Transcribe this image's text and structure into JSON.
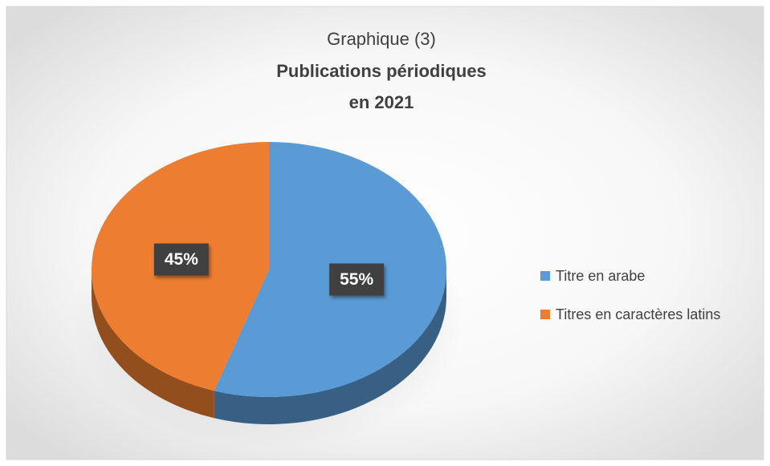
{
  "chart_data": {
    "type": "pie",
    "title": [
      "Graphique (3)",
      "Publications périodiques",
      "en 2021"
    ],
    "categories": [
      "Titre en arabe",
      "Titres en caractères latins"
    ],
    "values": [
      55,
      45
    ],
    "value_labels": [
      "55%",
      "45%"
    ],
    "colors": [
      "#5b9bd5",
      "#ed7d31"
    ],
    "legend": "right"
  }
}
